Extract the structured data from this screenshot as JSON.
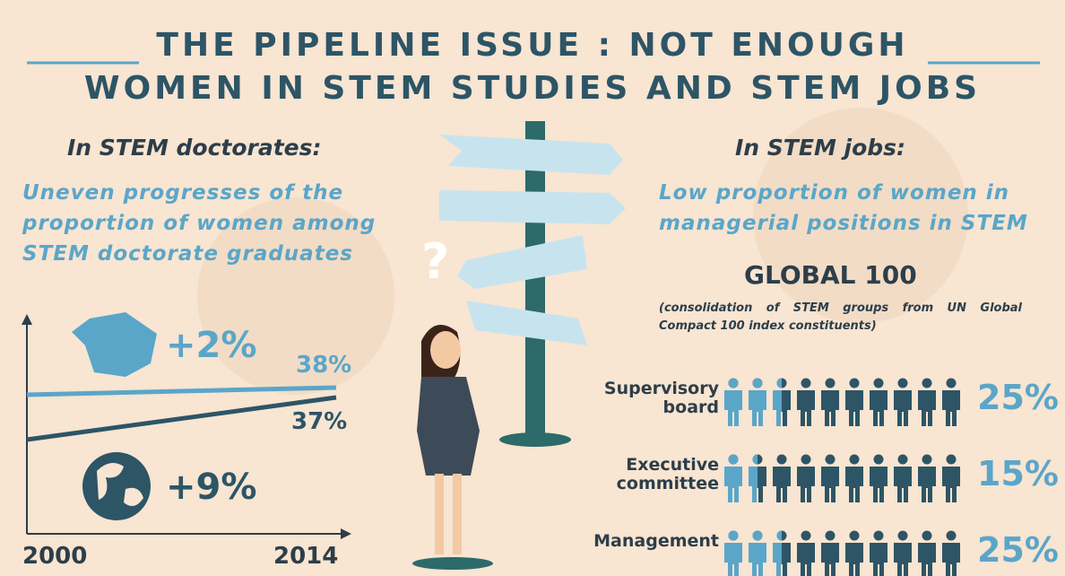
{
  "title": [
    "THE PIPELINE ISSUE : NOT ENOUGH",
    "WOMEN IN STEM STUDIES AND STEM JOBS"
  ],
  "left": {
    "heading": "In STEM doctorates:",
    "subheading": "Uneven progresses of the proportion of women among STEM doctorate graduates",
    "france_change": "+2%",
    "world_change": "+9%",
    "france_value": "38%",
    "world_value": "37%",
    "x_start": "2000",
    "x_end": "2014"
  },
  "right": {
    "heading": "In STEM jobs:",
    "subheading": "Low proportion of women in managerial positions in STEM",
    "index_title": "GLOBAL 100",
    "index_note": "(consolidation of STEM groups from UN Global Compact 100 index constituents)",
    "rows": [
      {
        "label": "Supervisory board",
        "value": 25,
        "value_label": "25%"
      },
      {
        "label": "Executive committee",
        "value": 15,
        "value_label": "15%"
      },
      {
        "label": "Management",
        "value": 25,
        "value_label": "25%"
      }
    ]
  }
}
